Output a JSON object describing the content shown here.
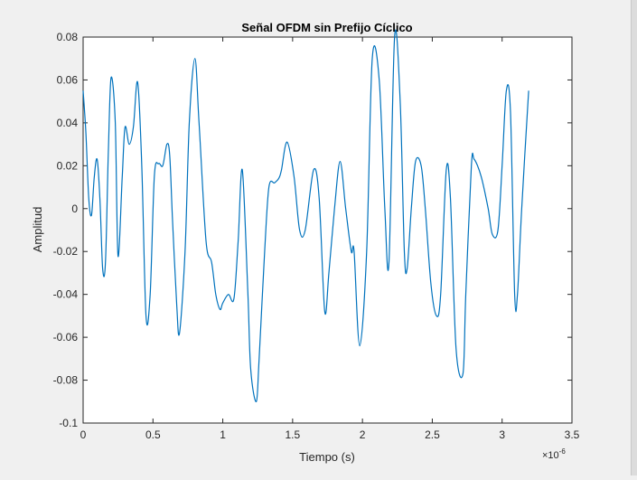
{
  "chart_data": {
    "type": "line",
    "title": "Señal OFDM sin Prefijo Cíclico",
    "xlabel": "Tiempo (s)",
    "ylabel": "Amplitud",
    "x_exponent_base": "×10",
    "x_exponent_power": "-6",
    "xlim": [
      0,
      3.5
    ],
    "ylim": [
      -0.1,
      0.08
    ],
    "xticks": [
      0,
      0.5,
      1,
      1.5,
      2,
      2.5,
      3,
      3.5
    ],
    "xtick_labels": [
      "0",
      "0.5",
      "1",
      "1.5",
      "2",
      "2.5",
      "3",
      "3.5"
    ],
    "yticks": [
      -0.1,
      -0.08,
      -0.06,
      -0.04,
      -0.02,
      0,
      0.02,
      0.04,
      0.06,
      0.08
    ],
    "ytick_labels": [
      "-0.1",
      "-0.08",
      "-0.06",
      "-0.04",
      "-0.02",
      "0",
      "0.02",
      "0.04",
      "0.06",
      "0.08"
    ],
    "grid": false,
    "line_color": "#0072BD",
    "series": [
      {
        "x": [
          0,
          0.02,
          0.04,
          0.06,
          0.08,
          0.1,
          0.12,
          0.14,
          0.16,
          0.18,
          0.2,
          0.23,
          0.25,
          0.28,
          0.3,
          0.33,
          0.36,
          0.39,
          0.42,
          0.45,
          0.48,
          0.51,
          0.54,
          0.57,
          0.6,
          0.62,
          0.64,
          0.67,
          0.69,
          0.73,
          0.76,
          0.8,
          0.83,
          0.88,
          0.92,
          0.95,
          0.98,
          1.0,
          1.04,
          1.08,
          1.11,
          1.14,
          1.18,
          1.2,
          1.24,
          1.26,
          1.3,
          1.33,
          1.37,
          1.4,
          1.42,
          1.46,
          1.51,
          1.55,
          1.59,
          1.65,
          1.69,
          1.73,
          1.76,
          1.8,
          1.84,
          1.88,
          1.92,
          1.94,
          1.98,
          2.03,
          2.07,
          2.12,
          2.16,
          2.19,
          2.23,
          2.27,
          2.3,
          2.32,
          2.35,
          2.38,
          2.42,
          2.45,
          2.49,
          2.53,
          2.56,
          2.6,
          2.63,
          2.67,
          2.72,
          2.74,
          2.78,
          2.8,
          2.85,
          2.9,
          2.93,
          2.97,
          3.0,
          3.03,
          3.06,
          3.09,
          3.11,
          3.14,
          3.19
        ],
        "y": [
          0.055,
          0.035,
          0.005,
          -0.003,
          0.015,
          0.023,
          0.005,
          -0.028,
          -0.025,
          0.025,
          0.061,
          0.04,
          -0.022,
          0.015,
          0.038,
          0.03,
          0.038,
          0.059,
          0.02,
          -0.05,
          -0.04,
          0.015,
          0.021,
          0.02,
          0.03,
          0.025,
          -0.005,
          -0.045,
          -0.058,
          -0.02,
          0.04,
          0.07,
          0.04,
          -0.015,
          -0.025,
          -0.04,
          -0.047,
          -0.044,
          -0.04,
          -0.042,
          -0.015,
          0.018,
          -0.04,
          -0.075,
          -0.09,
          -0.07,
          -0.02,
          0.01,
          0.012,
          0.014,
          0.018,
          0.031,
          0.015,
          -0.01,
          -0.01,
          0.018,
          0.005,
          -0.048,
          -0.03,
          0.0,
          0.022,
          0.0,
          -0.02,
          -0.02,
          -0.064,
          -0.02,
          0.07,
          0.06,
          0.0,
          -0.025,
          0.08,
          0.05,
          -0.02,
          -0.028,
          0.0,
          0.022,
          0.02,
          0.0,
          -0.035,
          -0.05,
          -0.04,
          0.018,
          0.005,
          -0.065,
          -0.077,
          -0.04,
          0.02,
          0.023,
          0.015,
          0.0,
          -0.012,
          -0.01,
          0.02,
          0.055,
          0.045,
          -0.04,
          -0.04,
          0.0,
          0.055
        ]
      }
    ]
  }
}
